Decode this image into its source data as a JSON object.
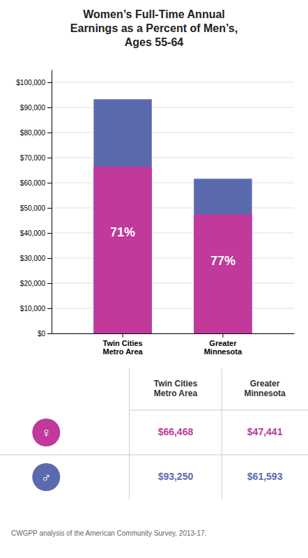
{
  "chart_data": {
    "type": "bar",
    "title": "Women’s Full-Time Annual\nEarnings as a Percent of Men’s,\nAges 55-64",
    "categories": [
      "Twin Cities\nMetro Area",
      "Greater\nMinnesota"
    ],
    "series": [
      {
        "name": "♀",
        "color": "#c0399b",
        "values": [
          66468,
          47441
        ],
        "value_labels": [
          "$66,468",
          "$47,441"
        ]
      },
      {
        "name": "♂",
        "color": "#5b6aae",
        "values": [
          93250,
          61593
        ],
        "value_labels": [
          "$93,250",
          "$61,593"
        ]
      }
    ],
    "ylim": [
      0,
      105000
    ],
    "yticks": [
      {
        "value": 0,
        "label": "$0"
      },
      {
        "value": 10000,
        "label": "$10,000"
      },
      {
        "value": 20000,
        "label": "$20,000"
      },
      {
        "value": 30000,
        "label": "$30,000"
      },
      {
        "value": 40000,
        "label": "$40,000"
      },
      {
        "value": 50000,
        "label": "$50,000"
      },
      {
        "value": 60000,
        "label": "$60,000"
      },
      {
        "value": 70000,
        "label": "$70,000"
      },
      {
        "value": 80000,
        "label": "$80,000"
      },
      {
        "value": 90000,
        "label": "$90,000"
      },
      {
        "value": 100000,
        "label": "$100,000"
      }
    ],
    "grid": true,
    "annotations": [
      "71%",
      "77%"
    ],
    "source": "CWGPP analysis of the American Community Survey, 2013-17."
  }
}
